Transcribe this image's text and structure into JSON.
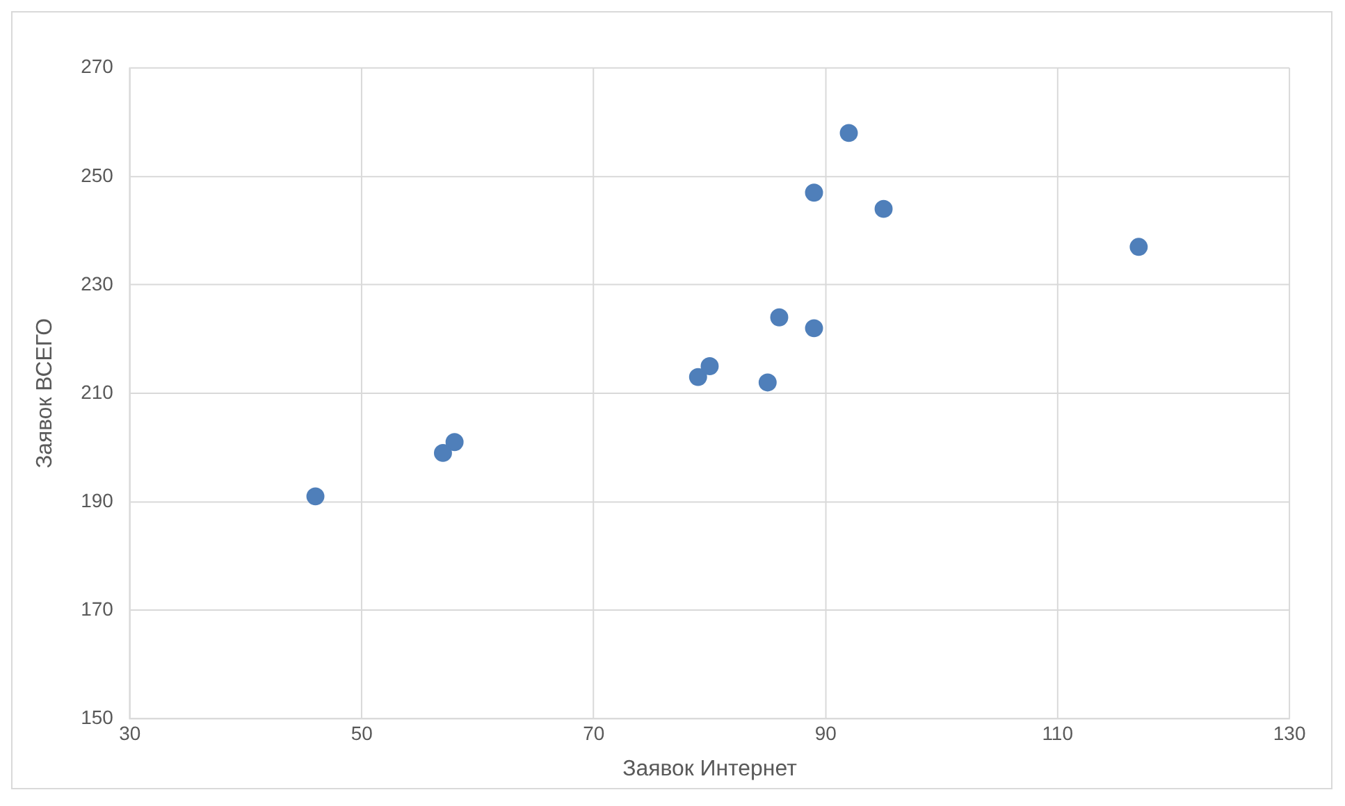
{
  "chart_data": {
    "type": "scatter",
    "xlabel": "Заявок Интернет",
    "ylabel": "Заявок ВСЕГО",
    "x": [
      46,
      57,
      58,
      79,
      80,
      85,
      86,
      89,
      89,
      92,
      95,
      117
    ],
    "values": [
      191,
      199,
      201,
      213,
      215,
      212,
      224,
      222,
      247,
      258,
      244,
      237
    ],
    "color": "#4f7fba",
    "marker": "circle",
    "xlim": [
      30,
      130
    ],
    "xticks": [
      30,
      50,
      70,
      90,
      110,
      130
    ],
    "ylim": [
      150,
      270
    ],
    "yticks": [
      150,
      170,
      190,
      210,
      230,
      250,
      270
    ],
    "grid": true,
    "legend": false
  }
}
